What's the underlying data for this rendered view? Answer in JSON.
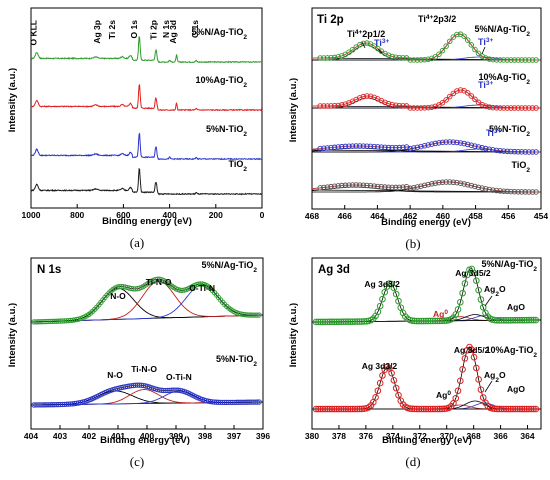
{
  "chart_data": [
    {
      "panel": "a",
      "type": "line",
      "caption": "(a)",
      "xlabel": "Binding energy (eV)",
      "ylabel": "Intensity (a.u.)",
      "xlim": [
        1000,
        0
      ],
      "x_ticks": [
        "1000",
        "800",
        "600",
        "400",
        "200",
        "0"
      ],
      "x_tick_values": [
        1000,
        800,
        600,
        400,
        200,
        0
      ],
      "peak_labels": [
        "O KLL",
        "Ag 3p",
        "Ti 2s",
        "O 1s",
        "Ti 2p",
        "N 1s",
        "Ag 3d",
        "C 1s"
      ],
      "series": [
        {
          "name": "5%N/Ag-TiO2",
          "label": "5%N/Ag-TiO",
          "sub": "2",
          "color": "#2e9c2e",
          "offset": 3
        },
        {
          "name": "10%Ag-TiO2",
          "label": "10%Ag-TiO",
          "sub": "2",
          "color": "#e02020",
          "offset": 2
        },
        {
          "name": "5%N-TiO2",
          "label": "5%N-TiO",
          "sub": "2",
          "color": "#2a35c8",
          "offset": 1
        },
        {
          "name": "TiO2",
          "label": "TiO",
          "sub": "2",
          "color": "#1a1a1a",
          "offset": 0
        }
      ]
    },
    {
      "panel": "b",
      "type": "line",
      "caption": "(b)",
      "title": "Ti 2p",
      "xlabel": "Binding energy (eV)",
      "ylabel": "Intensity (a.u.)",
      "xlim": [
        468,
        454
      ],
      "x_ticks": [
        "468",
        "466",
        "464",
        "462",
        "460",
        "458",
        "456",
        "454"
      ],
      "x_tick_values": [
        468,
        466,
        464,
        462,
        460,
        458,
        456,
        454
      ],
      "annotations": [
        {
          "text": "Ti",
          "sup": "4+",
          "text2": "2p1/2"
        },
        {
          "text": "Ti",
          "sup": "4+",
          "text2": "2p3/2"
        },
        {
          "text": "Ti",
          "sup": "3+"
        }
      ],
      "series": [
        {
          "name": "5%N/Ag-TiO2",
          "label": "5%N/Ag-TiO",
          "sub": "2",
          "color": "#2e9c2e",
          "peak_2p1_2": 464.7,
          "peak_2p3_2": 459.0
        },
        {
          "name": "10%Ag-TiO2",
          "label": "10%Ag-TiO",
          "sub": "2",
          "color": "#e02020",
          "peak_2p1_2": 464.6,
          "peak_2p3_2": 458.9
        },
        {
          "name": "5%N-TiO2",
          "label": "5%N-TiO",
          "sub": "2",
          "color": "#2a35c8",
          "peak_2p1_2": 465.2,
          "peak_2p3_2": 459.6
        },
        {
          "name": "TiO2",
          "label": "TiO",
          "sub": "2",
          "color": "#555555",
          "peak_2p1_2": 465.4,
          "peak_2p3_2": 459.7
        }
      ]
    },
    {
      "panel": "c",
      "type": "line",
      "caption": "(c)",
      "title": "N 1s",
      "xlabel": "Binding energy (eV)",
      "ylabel": "Intensity (a.u.)",
      "xlim": [
        404,
        396
      ],
      "x_ticks": [
        "404",
        "403",
        "402",
        "401",
        "400",
        "399",
        "398",
        "397",
        "396"
      ],
      "x_tick_values": [
        404,
        403,
        402,
        401,
        400,
        399,
        398,
        397,
        396
      ],
      "series": [
        {
          "name": "5%N/Ag-TiO2",
          "label": "5%N/Ag-TiO",
          "sub": "2",
          "color": "#2e9c2e",
          "components": [
            {
              "label": "N-O",
              "center": 401.0
            },
            {
              "label": "Ti-N-O",
              "center": 399.6
            },
            {
              "label": "O-Ti-N",
              "center": 398.1
            }
          ]
        },
        {
          "name": "5%N-TiO2",
          "label": "5%N-TiO",
          "sub": "2",
          "color": "#2a35c8",
          "components": [
            {
              "label": "N-O",
              "center": 401.1
            },
            {
              "label": "Ti-N-O",
              "center": 400.1
            },
            {
              "label": "O-Ti-N",
              "center": 398.9
            }
          ]
        }
      ]
    },
    {
      "panel": "d",
      "type": "line",
      "caption": "(d)",
      "title": "Ag 3d",
      "xlabel": "Binding energy (eV)",
      "ylabel": "Intensity (a.u.)",
      "xlim": [
        380,
        363
      ],
      "x_ticks": [
        "380",
        "378",
        "376",
        "374",
        "372",
        "370",
        "368",
        "366",
        "364"
      ],
      "x_tick_values": [
        380,
        378,
        376,
        374,
        372,
        370,
        368,
        366,
        364
      ],
      "series": [
        {
          "name": "5%N/Ag-TiO2",
          "label": "5%N/Ag-TiO",
          "sub": "2",
          "color": "#2e9c2e",
          "components": [
            {
              "label": "Ag 3d3/2",
              "center": 374.2
            },
            {
              "label": "Ag 3d5/2",
              "center": 368.2
            },
            {
              "label": "Ag",
              "sup": "0",
              "center": 369.0
            },
            {
              "label": "Ag",
              "sub": "2",
              "text2": "O",
              "center": 367.9
            },
            {
              "label": "AgO",
              "center": 367.2
            }
          ]
        },
        {
          "name": "10%Ag-TiO2",
          "label": "10%Ag-TiO",
          "sub": "2",
          "color": "#e02020",
          "components": [
            {
              "label": "Ag 3d3/2",
              "center": 374.4
            },
            {
              "label": "Ag 3d5/2",
              "center": 368.3
            },
            {
              "label": "Ag",
              "sup": "0",
              "center": 369.0
            },
            {
              "label": "Ag",
              "sub": "2",
              "text2": "O",
              "center": 367.9
            },
            {
              "label": "AgO",
              "center": 367.2
            }
          ]
        }
      ]
    }
  ]
}
